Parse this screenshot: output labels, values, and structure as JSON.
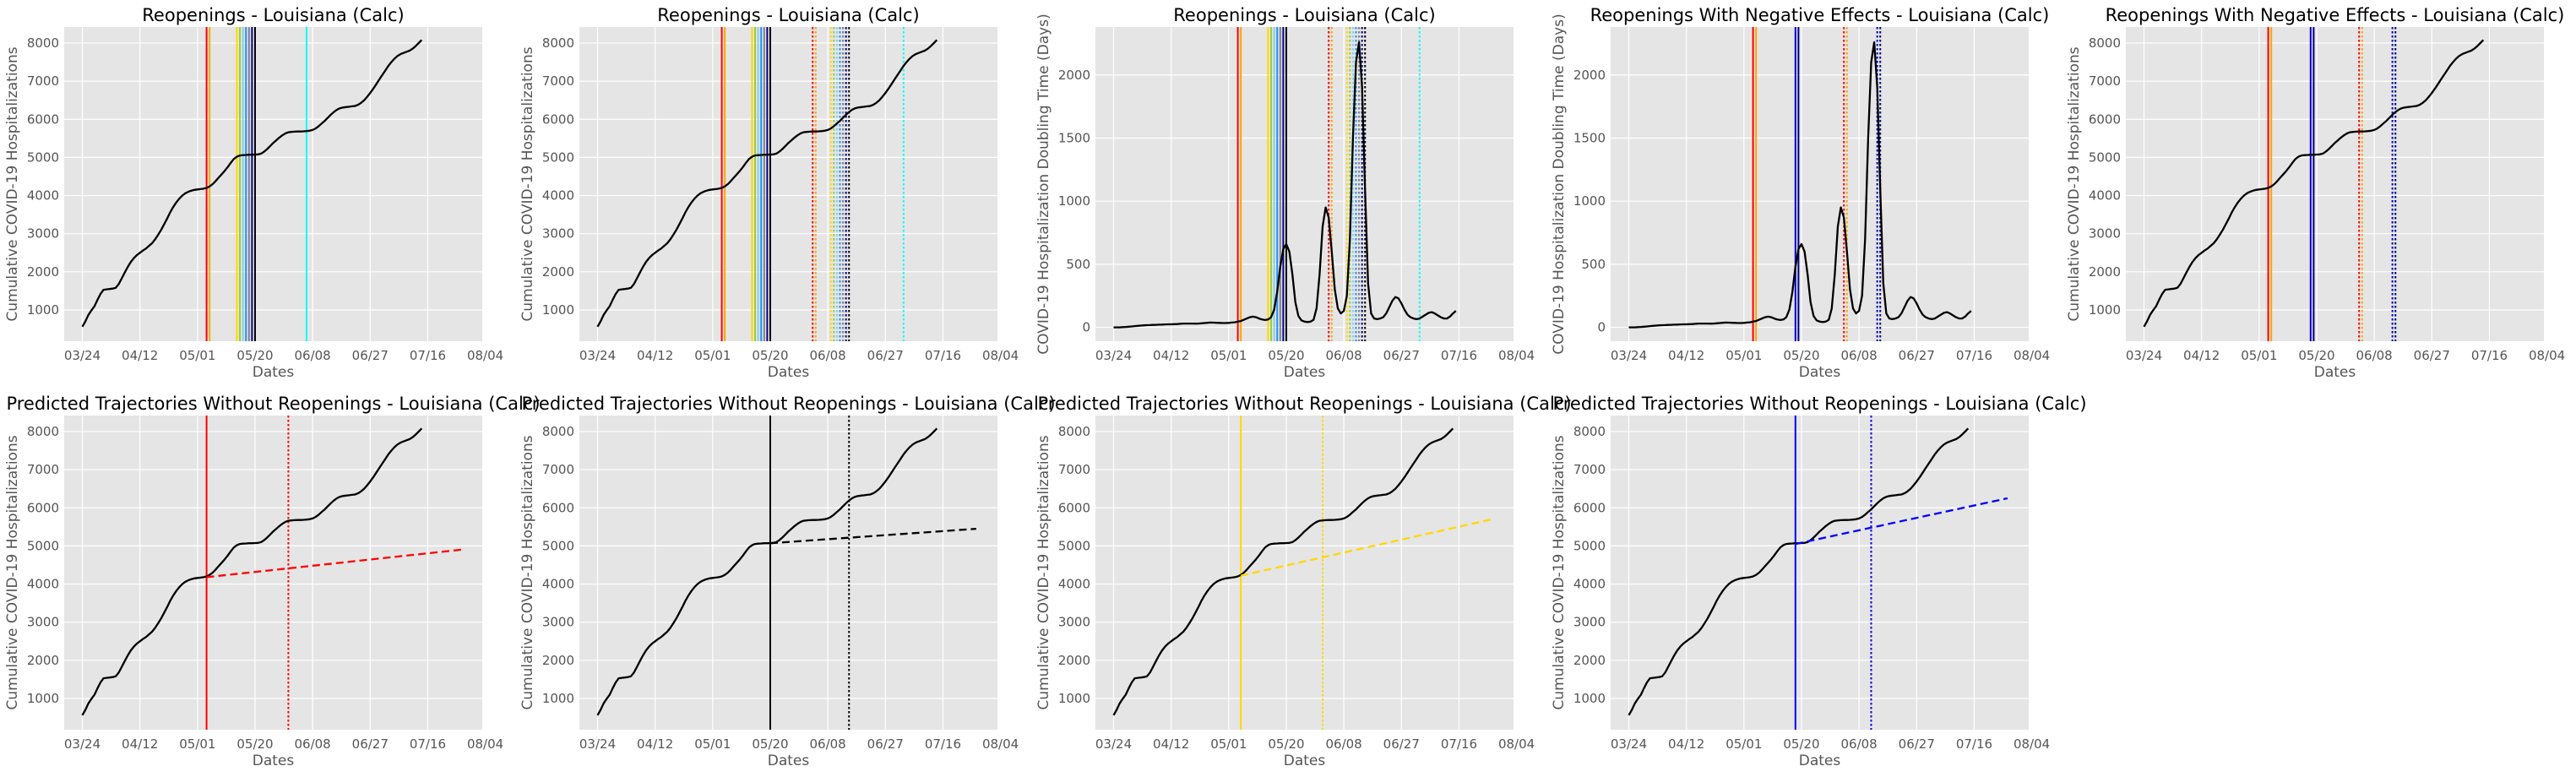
{
  "chart_data": [
    {
      "id": "p1",
      "type": "line",
      "title": "Reopenings - Louisiana (Calc)",
      "xlabel": "Dates",
      "ylabel": "Cumulative COVID-19 Hospitalizations",
      "x_ticks": [
        "03/24",
        "04/12",
        "05/01",
        "05/20",
        "06/08",
        "06/27",
        "07/16",
        "08/04"
      ],
      "y_ticks": [
        1000,
        2000,
        3000,
        4000,
        5000,
        6000,
        7000,
        8000
      ],
      "xlim": [
        -6,
        132
      ],
      "ylim": [
        180,
        8420
      ],
      "grid": true,
      "series": [
        {
          "color": "#000000",
          "style": "solid",
          "y_ref": "cumulative",
          "values": []
        }
      ],
      "vlines": [
        {
          "x": 41,
          "color": "#ff0000",
          "style": "solid"
        },
        {
          "x": 42,
          "color": "#ffa500",
          "style": "solid"
        },
        {
          "x": 51,
          "color": "#ffd700",
          "style": "solid"
        },
        {
          "x": 52,
          "color": "#9acd32",
          "style": "solid"
        },
        {
          "x": 53,
          "color": "#87ceeb",
          "style": "solid"
        },
        {
          "x": 54,
          "color": "#1e90ff",
          "style": "solid"
        },
        {
          "x": 55,
          "color": "#808080",
          "style": "solid"
        },
        {
          "x": 56,
          "color": "#00008b",
          "style": "solid"
        },
        {
          "x": 57,
          "color": "#000000",
          "style": "solid"
        },
        {
          "x": 74,
          "color": "#00ffff",
          "style": "solid"
        }
      ]
    },
    {
      "id": "p2",
      "type": "line",
      "title": "Reopenings - Louisiana (Calc)",
      "xlabel": "Dates",
      "ylabel": "Cumulative COVID-19 Hospitalizations",
      "x_ticks": [
        "03/24",
        "04/12",
        "05/01",
        "05/20",
        "06/08",
        "06/27",
        "07/16",
        "08/04"
      ],
      "y_ticks": [
        1000,
        2000,
        3000,
        4000,
        5000,
        6000,
        7000,
        8000
      ],
      "xlim": [
        -6,
        132
      ],
      "ylim": [
        180,
        8420
      ],
      "grid": true,
      "series": [
        {
          "color": "#000000",
          "style": "solid",
          "y_ref": "cumulative",
          "values": []
        }
      ],
      "vlines": [
        {
          "x": 41,
          "color": "#ff0000",
          "style": "solid"
        },
        {
          "x": 42,
          "color": "#ffa500",
          "style": "solid"
        },
        {
          "x": 51,
          "color": "#ffd700",
          "style": "solid"
        },
        {
          "x": 52,
          "color": "#9acd32",
          "style": "solid"
        },
        {
          "x": 53,
          "color": "#87ceeb",
          "style": "solid"
        },
        {
          "x": 54,
          "color": "#1e90ff",
          "style": "solid"
        },
        {
          "x": 55,
          "color": "#808080",
          "style": "solid"
        },
        {
          "x": 56,
          "color": "#00008b",
          "style": "solid"
        },
        {
          "x": 57,
          "color": "#000000",
          "style": "solid"
        },
        {
          "x": 71,
          "color": "#ff0000",
          "style": "dotted"
        },
        {
          "x": 72,
          "color": "#ffa500",
          "style": "dotted"
        },
        {
          "x": 77,
          "color": "#ffd700",
          "style": "dotted"
        },
        {
          "x": 78,
          "color": "#9acd32",
          "style": "dotted"
        },
        {
          "x": 79,
          "color": "#87ceeb",
          "style": "dotted"
        },
        {
          "x": 80,
          "color": "#1e90ff",
          "style": "dotted"
        },
        {
          "x": 81,
          "color": "#808080",
          "style": "dotted"
        },
        {
          "x": 82,
          "color": "#00008b",
          "style": "dotted"
        },
        {
          "x": 83,
          "color": "#000000",
          "style": "dotted"
        },
        {
          "x": 101,
          "color": "#00ffff",
          "style": "dotted"
        }
      ]
    },
    {
      "id": "p3",
      "type": "line",
      "title": "Reopenings - Louisiana (Calc)",
      "xlabel": "Dates",
      "ylabel": "COVID-19 Hospitalization Doubling Time (Days)",
      "x_ticks": [
        "03/24",
        "04/12",
        "05/01",
        "05/20",
        "06/08",
        "06/27",
        "07/16",
        "08/04"
      ],
      "y_ticks": [
        0,
        500,
        1000,
        1500,
        2000
      ],
      "xlim": [
        -6,
        132
      ],
      "ylim": [
        -110,
        2380
      ],
      "grid": true,
      "series": [
        {
          "color": "#000000",
          "style": "solid",
          "y_ref": "doubling",
          "values": []
        }
      ],
      "vlines": [
        {
          "x": 41,
          "color": "#ff0000",
          "style": "solid"
        },
        {
          "x": 42,
          "color": "#ffa500",
          "style": "solid"
        },
        {
          "x": 51,
          "color": "#ffd700",
          "style": "solid"
        },
        {
          "x": 52,
          "color": "#9acd32",
          "style": "solid"
        },
        {
          "x": 53,
          "color": "#87ceeb",
          "style": "solid"
        },
        {
          "x": 54,
          "color": "#1e90ff",
          "style": "solid"
        },
        {
          "x": 55,
          "color": "#808080",
          "style": "solid"
        },
        {
          "x": 56,
          "color": "#00008b",
          "style": "solid"
        },
        {
          "x": 57,
          "color": "#000000",
          "style": "solid"
        },
        {
          "x": 71,
          "color": "#ff0000",
          "style": "dotted"
        },
        {
          "x": 72,
          "color": "#ffa500",
          "style": "dotted"
        },
        {
          "x": 77,
          "color": "#ffd700",
          "style": "dotted"
        },
        {
          "x": 78,
          "color": "#9acd32",
          "style": "dotted"
        },
        {
          "x": 79,
          "color": "#87ceeb",
          "style": "dotted"
        },
        {
          "x": 80,
          "color": "#1e90ff",
          "style": "dotted"
        },
        {
          "x": 81,
          "color": "#808080",
          "style": "dotted"
        },
        {
          "x": 82,
          "color": "#00008b",
          "style": "dotted"
        },
        {
          "x": 83,
          "color": "#000000",
          "style": "dotted"
        },
        {
          "x": 101,
          "color": "#00ffff",
          "style": "dotted"
        }
      ]
    },
    {
      "id": "p4",
      "type": "line",
      "title": "Reopenings With Negative Effects - Louisiana (Calc)",
      "xlabel": "Dates",
      "ylabel": "COVID-19 Hospitalization Doubling Time (Days)",
      "x_ticks": [
        "03/24",
        "04/12",
        "05/01",
        "05/20",
        "06/08",
        "06/27",
        "07/16",
        "08/04"
      ],
      "y_ticks": [
        0,
        500,
        1000,
        1500,
        2000
      ],
      "xlim": [
        -6,
        132
      ],
      "ylim": [
        -110,
        2380
      ],
      "grid": true,
      "series": [
        {
          "color": "#000000",
          "style": "solid",
          "y_ref": "doubling",
          "values": []
        }
      ],
      "vlines": [
        {
          "x": 41,
          "color": "#ff0000",
          "style": "solid"
        },
        {
          "x": 42,
          "color": "#ffa500",
          "style": "solid"
        },
        {
          "x": 55,
          "color": "#0000cd",
          "style": "solid"
        },
        {
          "x": 56,
          "color": "#000080",
          "style": "solid"
        },
        {
          "x": 71,
          "color": "#ff0000",
          "style": "dotted"
        },
        {
          "x": 72,
          "color": "#ffa500",
          "style": "dotted"
        },
        {
          "x": 82,
          "color": "#0000cd",
          "style": "dotted"
        },
        {
          "x": 83,
          "color": "#000080",
          "style": "dotted"
        }
      ]
    },
    {
      "id": "p5",
      "type": "line",
      "title": "Reopenings With Negative Effects - Louisiana (Calc)",
      "xlabel": "Dates",
      "ylabel": "Cumulative COVID-19 Hospitalizations",
      "x_ticks": [
        "03/24",
        "04/12",
        "05/01",
        "05/20",
        "06/08",
        "06/27",
        "07/16",
        "08/04"
      ],
      "y_ticks": [
        1000,
        2000,
        3000,
        4000,
        5000,
        6000,
        7000,
        8000
      ],
      "xlim": [
        -6,
        132
      ],
      "ylim": [
        180,
        8420
      ],
      "grid": true,
      "series": [
        {
          "color": "#000000",
          "style": "solid",
          "y_ref": "cumulative",
          "values": []
        }
      ],
      "vlines": [
        {
          "x": 41,
          "color": "#ff0000",
          "style": "solid"
        },
        {
          "x": 42,
          "color": "#ffa500",
          "style": "solid"
        },
        {
          "x": 55,
          "color": "#0000cd",
          "style": "solid"
        },
        {
          "x": 56,
          "color": "#000080",
          "style": "solid"
        },
        {
          "x": 71,
          "color": "#ff0000",
          "style": "dotted"
        },
        {
          "x": 72,
          "color": "#ffa500",
          "style": "dotted"
        },
        {
          "x": 82,
          "color": "#0000cd",
          "style": "dotted"
        },
        {
          "x": 83,
          "color": "#000080",
          "style": "dotted"
        }
      ]
    },
    {
      "id": "p6",
      "type": "line",
      "title": "Predicted Trajectories Without Reopenings - Louisiana (Calc)",
      "xlabel": "Dates",
      "ylabel": "Cumulative COVID-19 Hospitalizations",
      "x_ticks": [
        "03/24",
        "04/12",
        "05/01",
        "05/20",
        "06/08",
        "06/27",
        "07/16",
        "08/04"
      ],
      "y_ticks": [
        1000,
        2000,
        3000,
        4000,
        5000,
        6000,
        7000,
        8000
      ],
      "xlim": [
        -6,
        132
      ],
      "ylim": [
        180,
        8420
      ],
      "grid": true,
      "series": [
        {
          "color": "#000000",
          "style": "solid",
          "y_ref": "cumulative",
          "values": []
        },
        {
          "color": "#ff0000",
          "style": "dashed",
          "x": [
            41,
            125
          ],
          "y": [
            4180,
            4900
          ]
        }
      ],
      "vlines": [
        {
          "x": 41,
          "color": "#ff0000",
          "style": "solid"
        },
        {
          "x": 68,
          "color": "#ff0000",
          "style": "dotted"
        }
      ]
    },
    {
      "id": "p7",
      "type": "line",
      "title": "Predicted Trajectories Without Reopenings - Louisiana (Calc)",
      "xlabel": "Dates",
      "ylabel": "Cumulative COVID-19 Hospitalizations",
      "x_ticks": [
        "03/24",
        "04/12",
        "05/01",
        "05/20",
        "06/08",
        "06/27",
        "07/16",
        "08/04"
      ],
      "y_ticks": [
        1000,
        2000,
        3000,
        4000,
        5000,
        6000,
        7000,
        8000
      ],
      "xlim": [
        -6,
        132
      ],
      "ylim": [
        180,
        8420
      ],
      "grid": true,
      "series": [
        {
          "color": "#000000",
          "style": "solid",
          "y_ref": "cumulative",
          "values": []
        },
        {
          "color": "#000000",
          "style": "dashed",
          "x": [
            57,
            125
          ],
          "y": [
            5070,
            5450
          ]
        }
      ],
      "vlines": [
        {
          "x": 57,
          "color": "#000000",
          "style": "solid"
        },
        {
          "x": 83,
          "color": "#000000",
          "style": "dotted"
        }
      ]
    },
    {
      "id": "p8",
      "type": "line",
      "title": "Predicted Trajectories Without Reopenings - Louisiana (Calc)",
      "xlabel": "Dates",
      "ylabel": "Cumulative COVID-19 Hospitalizations",
      "x_ticks": [
        "03/24",
        "04/12",
        "05/01",
        "05/20",
        "06/08",
        "06/27",
        "07/16",
        "08/04"
      ],
      "y_ticks": [
        1000,
        2000,
        3000,
        4000,
        5000,
        6000,
        7000,
        8000
      ],
      "xlim": [
        -6,
        132
      ],
      "ylim": [
        180,
        8420
      ],
      "grid": true,
      "series": [
        {
          "color": "#000000",
          "style": "solid",
          "y_ref": "cumulative",
          "values": []
        },
        {
          "color": "#ffd700",
          "style": "dashed",
          "x": [
            42,
            125
          ],
          "y": [
            4220,
            5700
          ]
        }
      ],
      "vlines": [
        {
          "x": 42,
          "color": "#ffd700",
          "style": "solid"
        },
        {
          "x": 69,
          "color": "#ffd700",
          "style": "dotted"
        }
      ]
    },
    {
      "id": "p9",
      "type": "line",
      "title": "Predicted Trajectories Without Reopenings - Louisiana (Calc)",
      "xlabel": "Dates",
      "ylabel": "Cumulative COVID-19 Hospitalizations",
      "x_ticks": [
        "03/24",
        "04/12",
        "05/01",
        "05/20",
        "06/08",
        "06/27",
        "07/16",
        "08/04"
      ],
      "y_ticks": [
        1000,
        2000,
        3000,
        4000,
        5000,
        6000,
        7000,
        8000
      ],
      "xlim": [
        -6,
        132
      ],
      "ylim": [
        180,
        8420
      ],
      "grid": true,
      "series": [
        {
          "color": "#000000",
          "style": "solid",
          "y_ref": "cumulative",
          "values": []
        },
        {
          "color": "#0000ff",
          "style": "dashed",
          "x": [
            55,
            125
          ],
          "y": [
            5050,
            6250
          ]
        }
      ],
      "vlines": [
        {
          "x": 55,
          "color": "#0000ff",
          "style": "solid"
        },
        {
          "x": 80,
          "color": "#0000ff",
          "style": "dotted"
        }
      ]
    }
  ],
  "shared": {
    "x_start": 0,
    "x_step": 1,
    "cumulative": [
      560,
      700,
      870,
      990,
      1100,
      1270,
      1420,
      1530,
      1540,
      1550,
      1560,
      1580,
      1680,
      1830,
      1980,
      2130,
      2260,
      2360,
      2440,
      2500,
      2560,
      2610,
      2680,
      2750,
      2850,
      2970,
      3100,
      3250,
      3400,
      3560,
      3700,
      3820,
      3920,
      4000,
      4060,
      4100,
      4130,
      4150,
      4160,
      4170,
      4180,
      4200,
      4240,
      4300,
      4380,
      4470,
      4560,
      4650,
      4750,
      4860,
      4960,
      5020,
      5050,
      5060,
      5065,
      5070,
      5070,
      5075,
      5080,
      5100,
      5150,
      5220,
      5300,
      5380,
      5450,
      5520,
      5580,
      5630,
      5660,
      5670,
      5675,
      5680,
      5680,
      5685,
      5690,
      5700,
      5720,
      5760,
      5820,
      5890,
      5960,
      6040,
      6120,
      6190,
      6250,
      6290,
      6310,
      6320,
      6330,
      6340,
      6350,
      6380,
      6430,
      6500,
      6590,
      6690,
      6800,
      6920,
      7040,
      7160,
      7280,
      7400,
      7500,
      7590,
      7660,
      7710,
      7740,
      7770,
      7800,
      7850,
      7920,
      8000,
      8080
    ],
    "doubling": [
      0,
      0,
      0,
      2,
      3,
      5,
      7,
      10,
      12,
      14,
      16,
      17,
      18,
      19,
      20,
      21,
      22,
      23,
      24,
      24,
      25,
      26,
      28,
      30,
      30,
      30,
      30,
      29,
      30,
      32,
      34,
      36,
      38,
      37,
      36,
      35,
      34,
      34,
      35,
      38,
      40,
      45,
      50,
      60,
      70,
      80,
      85,
      80,
      70,
      62,
      58,
      62,
      80,
      140,
      280,
      480,
      620,
      660,
      600,
      420,
      200,
      90,
      55,
      45,
      42,
      45,
      60,
      150,
      420,
      800,
      950,
      870,
      600,
      300,
      150,
      110,
      130,
      250,
      700,
      1500,
      2100,
      2260,
      1900,
      1100,
      350,
      110,
      70,
      65,
      70,
      80,
      110,
      160,
      210,
      240,
      230,
      190,
      140,
      100,
      80,
      70,
      65,
      70,
      85,
      100,
      115,
      120,
      110,
      95,
      80,
      70,
      70,
      85,
      110,
      130
    ]
  }
}
